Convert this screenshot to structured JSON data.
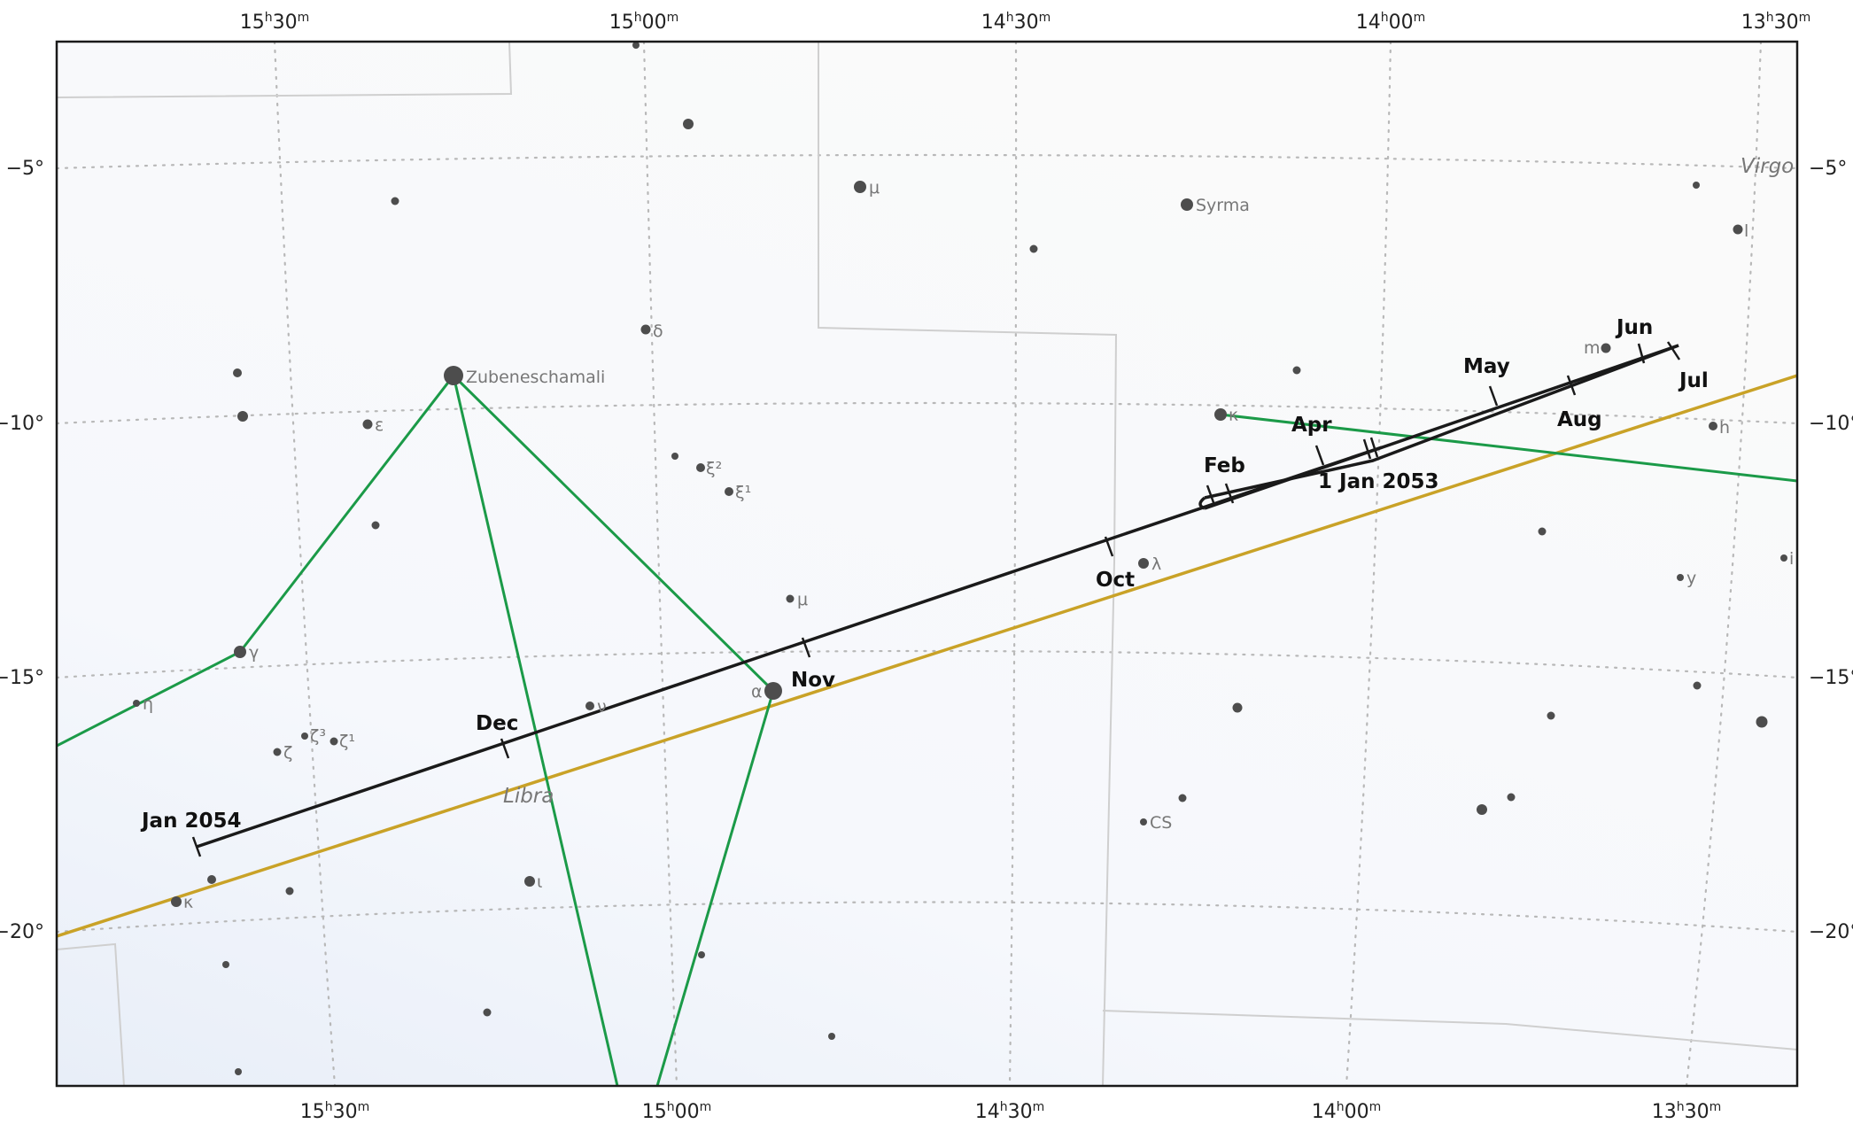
{
  "colors": {
    "background": "#ffffff",
    "plot_fill": "#f7f8fb",
    "grid": "#b8b8b8",
    "boundary": "#cfcfcf",
    "constellation_lines": "#1b9a48",
    "ecliptic": "#c9a227",
    "path": "#1a1a1a",
    "star": "#4d4d4d"
  },
  "ra_ticks": [
    {
      "id": "ra-15h30",
      "h": "15",
      "m": "30"
    },
    {
      "id": "ra-15h00",
      "h": "15",
      "m": "00"
    },
    {
      "id": "ra-14h30",
      "h": "14",
      "m": "30"
    },
    {
      "id": "ra-14h00",
      "h": "14",
      "m": "00"
    },
    {
      "id": "ra-13h30",
      "h": "13",
      "m": "30"
    }
  ],
  "dec_ticks": [
    {
      "id": "dec-m5",
      "label": "−5°"
    },
    {
      "id": "dec-m10",
      "label": "−10°"
    },
    {
      "id": "dec-m15",
      "label": "−15°"
    },
    {
      "id": "dec-m20",
      "label": "−20°"
    }
  ],
  "constellations": [
    {
      "id": "virgo",
      "label": "Virgo"
    },
    {
      "id": "libra",
      "label": "Libra"
    }
  ],
  "named_stars": [
    {
      "id": "zubeneschamali",
      "label": "Zubeneschamali"
    },
    {
      "id": "syrma",
      "label": "Syrma"
    }
  ],
  "greek_labels": [
    {
      "id": "mu-vir",
      "label": "μ"
    },
    {
      "id": "l-vir",
      "label": "l"
    },
    {
      "id": "delta-lib",
      "label": "δ"
    },
    {
      "id": "m-vir",
      "label": "m"
    },
    {
      "id": "epsilon-lib",
      "label": "ε"
    },
    {
      "id": "kappa-vir",
      "label": "κ"
    },
    {
      "id": "h-vir",
      "label": "h"
    },
    {
      "id": "xi2-lib",
      "label": "ξ²"
    },
    {
      "id": "xi1-lib",
      "label": "ξ¹"
    },
    {
      "id": "lambda-vir",
      "label": "λ"
    },
    {
      "id": "i-vir",
      "label": "i"
    },
    {
      "id": "mu-lib",
      "label": "μ"
    },
    {
      "id": "y-vir",
      "label": "y"
    },
    {
      "id": "gamma-lib",
      "label": "γ"
    },
    {
      "id": "eta-lib",
      "label": "η"
    },
    {
      "id": "alpha-lib",
      "label": "α"
    },
    {
      "id": "nu-lib",
      "label": "ν"
    },
    {
      "id": "zeta3-lib",
      "label": "ζ³"
    },
    {
      "id": "zeta1-lib",
      "label": "ζ¹"
    },
    {
      "id": "zeta-lib",
      "label": "ζ"
    },
    {
      "id": "cs-lib",
      "label": "CS"
    },
    {
      "id": "iota-lib",
      "label": "ι"
    },
    {
      "id": "kappa-lib",
      "label": "κ"
    }
  ],
  "path_labels": [
    {
      "id": "jun",
      "label": "Jun"
    },
    {
      "id": "may",
      "label": "May"
    },
    {
      "id": "jul",
      "label": "Jul"
    },
    {
      "id": "apr",
      "label": "Apr"
    },
    {
      "id": "aug",
      "label": "Aug"
    },
    {
      "id": "feb",
      "label": "Feb"
    },
    {
      "id": "jan-2053",
      "label": "1 Jan 2053"
    },
    {
      "id": "oct",
      "label": "Oct"
    },
    {
      "id": "nov",
      "label": "Nov"
    },
    {
      "id": "dec",
      "label": "Dec"
    },
    {
      "id": "jan-2054",
      "label": "Jan 2054"
    }
  ]
}
